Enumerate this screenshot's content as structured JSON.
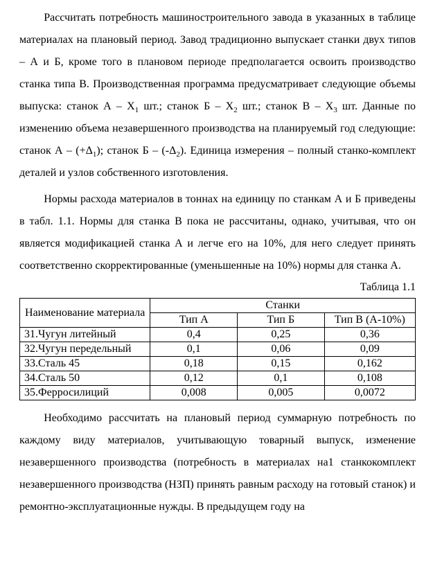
{
  "para1_html": "Рассчитать потребность машиностроительного завода в указанных в таблице материалах на плановый период. Завод традиционно выпускает станки двух типов – А и Б, кроме того в плановом периоде предполагается освоить производство станка типа В. Производственная программа предусматривает следующие объемы выпуска: станок А – Х<span class=\"sub\">1</span> шт.; станок Б – Х<span class=\"sub\">2</span> шт.; станок В – Х<span class=\"sub\">3</span> шт. Данные по изменению объема незавершенного производства на планируемый год следующие: станок А – (+Δ<span class=\"sub\">1</span>); станок Б – (-Δ<span class=\"sub\">2</span>). Единица измерения – полный станко-комплект деталей и узлов собственного изготовления.",
  "para2": "Нормы расхода материалов в тоннах на единицу по станкам А и Б приведены в табл. 1.1. Нормы для станка В пока не рассчитаны, однако, учитывая, что он является модификацией станка А и легче его на 10%, для него следует принять соответственно скорректированные (уменьшенные на 10%) нормы для станка А.",
  "table_label": "Таблица 1.1",
  "table": {
    "header_material": "Наименование материала",
    "header_group": "Станки",
    "header_a": "Тип А",
    "header_b": "Тип Б",
    "header_v": "Тип В (А-10%)",
    "rows": [
      {
        "name": "31.Чугун литейный",
        "a": "0,4",
        "b": "0,25",
        "v": "0,36"
      },
      {
        "name": "32.Чугун передельный",
        "a": "0,1",
        "b": "0,06",
        "v": "0,09"
      },
      {
        "name": "33.Сталь 45",
        "a": "0,18",
        "b": "0,15",
        "v": "0,162"
      },
      {
        "name": "34.Сталь 50",
        "a": "0,12",
        "b": "0,1",
        "v": "0,108"
      },
      {
        "name": "35.Ферросилиций",
        "a": "0,008",
        "b": "0,005",
        "v": "0,0072"
      }
    ]
  },
  "para3": "Необходимо рассчитать на плановый период суммарную потребность по каждому виду материалов, учитывающую товарный выпуск, изменение незавершенного производства (потребность в материалах на1 станкокомплект незавершенного производства (НЗП) принять равным расходу на готовый станок) и ремонтно-эксплуатационные нужды. В предыдущем году на"
}
